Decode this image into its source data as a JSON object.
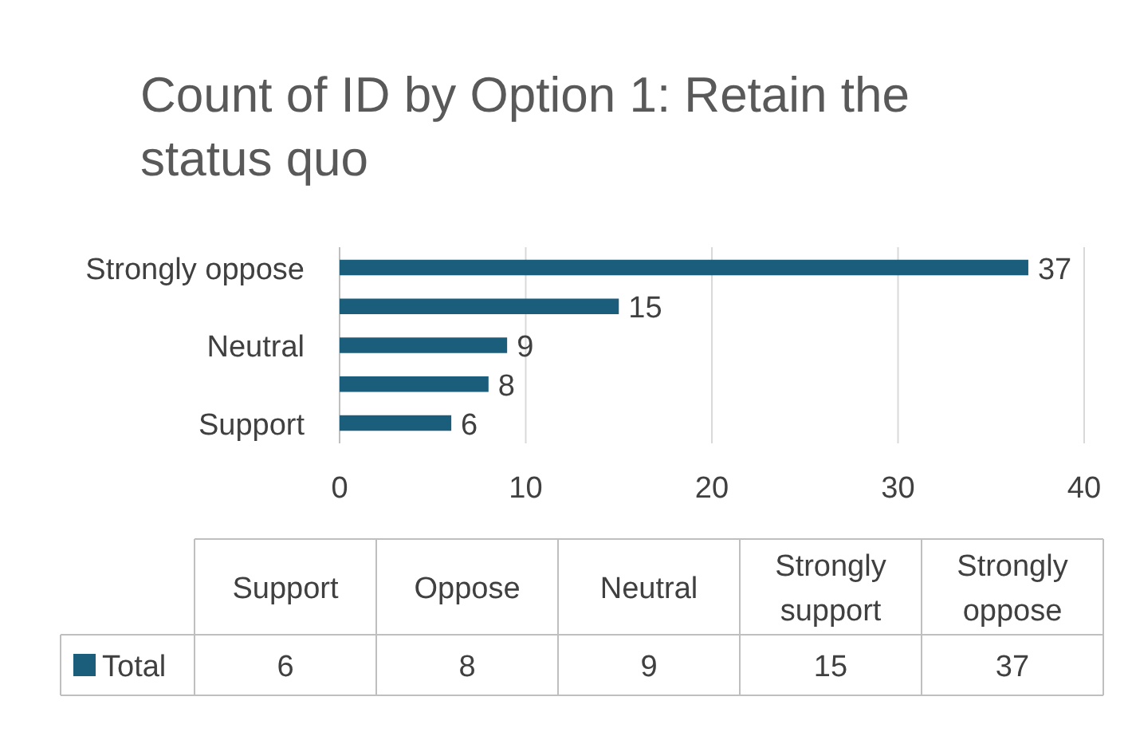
{
  "chart_data": [
    {
      "type": "bar",
      "orientation": "horizontal",
      "title": "Count of ID by Option 1: Retain the status quo",
      "categories": [
        "Strongly oppose",
        null,
        "Neutral",
        null,
        "Support"
      ],
      "series": [
        {
          "color": "#1b5e7b",
          "values": [
            37,
            15,
            9,
            8,
            6
          ]
        }
      ],
      "xlim": [
        0,
        40
      ],
      "xticks": [
        0,
        10,
        20,
        30,
        40
      ],
      "grid": "x",
      "data_labels": true
    },
    {
      "type": "other",
      "categories": [
        "Support",
        "Oppose",
        "Neutral",
        "Strongly support",
        "Strongly oppose"
      ],
      "series": [
        {
          "name": "Total",
          "color": "#1b5e7b",
          "values": [
            6,
            8,
            9,
            15,
            37
          ]
        }
      ],
      "data_labels": true
    }
  ]
}
